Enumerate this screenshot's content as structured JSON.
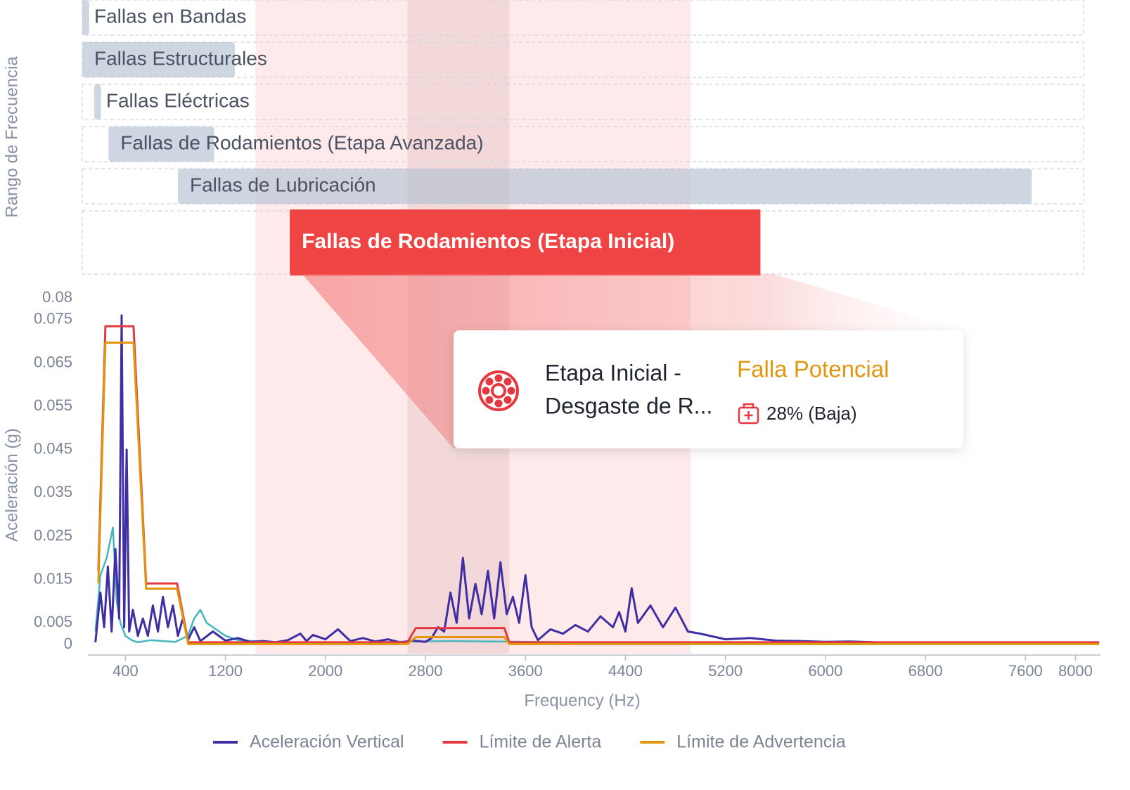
{
  "chart_data": {
    "type": "line",
    "band_axis_label": "Rango de Frecuencia",
    "bands": [
      {
        "name": "Fallas en Bandas",
        "range": [
          55,
          110
        ]
      },
      {
        "name": "Fallas Estructurales",
        "range": [
          55,
          1275
        ]
      },
      {
        "name": "Fallas Eléctricas",
        "range": [
          150,
          205
        ]
      },
      {
        "name": "Fallas de Rodamientos (Etapa Avanzada)",
        "range": [
          265,
          1110
        ]
      },
      {
        "name": "Fallas de Lubricación",
        "range": [
          820,
          7650
        ]
      },
      {
        "name": "Fallas de Rodamientos (Etapa Inicial)",
        "range": [
          1715,
          5480
        ],
        "active": true
      }
    ],
    "shaded_ranges": [
      [
        1440,
        4920
      ],
      [
        2656,
        3471
      ]
    ],
    "xlabel": "Frequency (Hz)",
    "ylabel": "Aceleración (g)",
    "xlim": [
      100,
      8200
    ],
    "xticks": [
      400,
      1200,
      2000,
      2800,
      3600,
      4400,
      5200,
      6000,
      6800,
      7600,
      8000
    ],
    "ylim": [
      0,
      0.08
    ],
    "yticks": [
      0,
      0.005,
      0.015,
      0.025,
      0.035,
      0.045,
      0.055,
      0.065,
      0.075,
      0.08
    ],
    "series": [
      {
        "color": "#45b5bf",
        "x": [
          160,
          200,
          250,
          300,
          330,
          360,
          400,
          450,
          500,
          600,
          700,
          800,
          900,
          950,
          1000,
          1050,
          1100,
          1200,
          1300,
          1500,
          2000,
          3000,
          4000,
          5000,
          6000,
          7000,
          8000,
          8100
        ],
        "values": [
          0.003,
          0.016,
          0.02,
          0.027,
          0.01,
          0.005,
          0.002,
          0.001,
          0.0005,
          0.001,
          0.0008,
          0.0006,
          0.002,
          0.006,
          0.008,
          0.005,
          0.004,
          0.002,
          0.001,
          0.0006,
          0.0004,
          0.0008,
          0.0005,
          0.0004,
          0.0003,
          0.0003,
          0.0002,
          0.0002
        ]
      },
      {
        "name": "Aceleración Vertical",
        "color": "#3f2fa3",
        "x": [
          160,
          200,
          230,
          260,
          290,
          320,
          350,
          370,
          390,
          410,
          430,
          460,
          500,
          540,
          580,
          620,
          660,
          700,
          740,
          780,
          820,
          860,
          900,
          950,
          1000,
          1100,
          1200,
          1300,
          1400,
          1500,
          1600,
          1700,
          1800,
          1850,
          1900,
          2000,
          2100,
          2200,
          2300,
          2400,
          2500,
          2600,
          2700,
          2800,
          2850,
          2900,
          2950,
          3000,
          3050,
          3100,
          3150,
          3200,
          3250,
          3300,
          3350,
          3400,
          3450,
          3500,
          3550,
          3600,
          3650,
          3700,
          3800,
          3900,
          4000,
          4100,
          4200,
          4300,
          4350,
          4400,
          4450,
          4500,
          4600,
          4700,
          4800,
          4900,
          5000,
          5200,
          5400,
          5600,
          5800,
          6000,
          6200,
          6400,
          6800,
          7200,
          7600,
          8000,
          8100
        ],
        "values": [
          0.0005,
          0.012,
          0.004,
          0.018,
          0.003,
          0.022,
          0.006,
          0.076,
          0.004,
          0.045,
          0.003,
          0.008,
          0.002,
          0.006,
          0.002,
          0.009,
          0.003,
          0.011,
          0.004,
          0.009,
          0.002,
          0.006,
          0.001,
          0.004,
          0.0008,
          0.003,
          0.0009,
          0.0015,
          0.0006,
          0.0008,
          0.0005,
          0.001,
          0.0025,
          0.0008,
          0.0022,
          0.0012,
          0.0035,
          0.0008,
          0.0015,
          0.0007,
          0.0012,
          0.0005,
          0.0009,
          0.0006,
          0.0015,
          0.004,
          0.003,
          0.012,
          0.005,
          0.02,
          0.006,
          0.014,
          0.007,
          0.017,
          0.006,
          0.019,
          0.007,
          0.011,
          0.005,
          0.016,
          0.004,
          0.001,
          0.0035,
          0.0025,
          0.0045,
          0.003,
          0.0065,
          0.004,
          0.0075,
          0.003,
          0.013,
          0.005,
          0.009,
          0.004,
          0.0085,
          0.003,
          0.0025,
          0.0012,
          0.0015,
          0.0009,
          0.0008,
          0.0006,
          0.0007,
          0.0005,
          0.0004,
          0.0004,
          0.0003,
          0.0003,
          0.0003
        ]
      },
      {
        "name": "Límite de Alerta",
        "color": "#e5393f",
        "x": [
          184,
          240,
          465,
          566,
          813,
          903,
          2656,
          2723,
          3431,
          3471,
          8190
        ],
        "values": [
          0.017,
          0.0735,
          0.0735,
          0.0141,
          0.0141,
          0.0005,
          0.0005,
          0.0038,
          0.0038,
          0.0005,
          0.0005
        ]
      },
      {
        "name": "Límite de Advertencia",
        "color": "#e0960f",
        "x": [
          184,
          240,
          465,
          566,
          813,
          903,
          2656,
          2723,
          3431,
          3471,
          8190
        ],
        "values": [
          0.0141,
          0.0697,
          0.0697,
          0.0129,
          0.0129,
          0.0001,
          0.0001,
          0.0017,
          0.0017,
          0.0001,
          0.0001
        ]
      }
    ]
  },
  "tooltip": {
    "title_line1": "Etapa Inicial -",
    "title_line2": "Desgaste de R...",
    "status": "Falla Potencial",
    "probability": "28% (Baja)"
  }
}
